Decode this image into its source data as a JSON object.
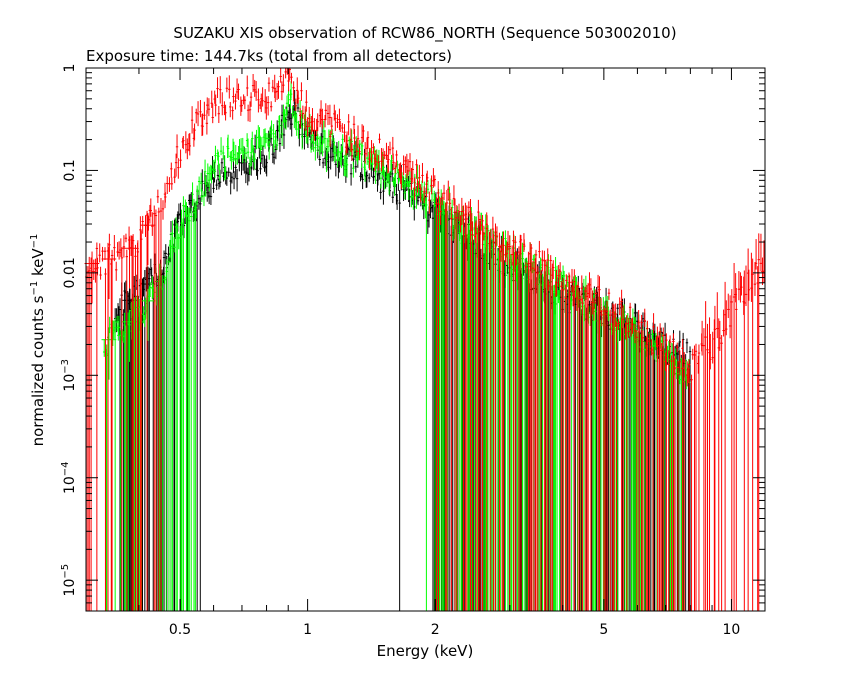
{
  "chart_data": {
    "type": "scatter",
    "title": "SUZAKU XIS observation of RCW86_NORTH (Sequence 503002010)",
    "subtitle": "Exposure time: 144.7ks (total from all detectors)",
    "xlabel": "Energy (keV)",
    "ylabel": {
      "prefix": "normalized counts s",
      "sup1": "−1",
      "mid": " keV",
      "sup2": "−1"
    },
    "x_scale": "log",
    "y_scale": "log",
    "xlim": [
      0.3,
      12
    ],
    "ylim": [
      5e-06,
      1
    ],
    "grid": false,
    "x_ticks": [
      {
        "value": 0.5,
        "label": "0.5"
      },
      {
        "value": 1,
        "label": "1"
      },
      {
        "value": 2,
        "label": "2"
      },
      {
        "value": 5,
        "label": "5"
      },
      {
        "value": 10,
        "label": "10"
      }
    ],
    "y_ticks": [
      {
        "value": 1,
        "label": "1",
        "mant": "1",
        "exp": ""
      },
      {
        "value": 0.1,
        "label": "0.1",
        "mant": "0.1",
        "exp": ""
      },
      {
        "value": 0.01,
        "label": "0.01",
        "mant": "0.01",
        "exp": ""
      },
      {
        "value": 0.001,
        "label": "10−3",
        "mant": "10",
        "exp": "−3"
      },
      {
        "value": 0.0001,
        "label": "10−4",
        "mant": "10",
        "exp": "−4"
      },
      {
        "value": 1e-05,
        "label": "10−5",
        "mant": "10",
        "exp": "−5"
      }
    ],
    "series": [
      {
        "color": "#ff0000",
        "points": [
          [
            0.3,
            0.012
          ],
          [
            0.33,
            0.013
          ],
          [
            0.36,
            0.015
          ],
          [
            0.4,
            0.02
          ],
          [
            0.45,
            0.05
          ],
          [
            0.5,
            0.15
          ],
          [
            0.55,
            0.3
          ],
          [
            0.6,
            0.45
          ],
          [
            0.65,
            0.5
          ],
          [
            0.7,
            0.55
          ],
          [
            0.75,
            0.5
          ],
          [
            0.8,
            0.55
          ],
          [
            0.85,
            0.6
          ],
          [
            0.9,
            0.8
          ],
          [
            0.95,
            0.5
          ],
          [
            1.0,
            0.35
          ],
          [
            1.1,
            0.3
          ],
          [
            1.2,
            0.25
          ],
          [
            1.3,
            0.2
          ],
          [
            1.5,
            0.15
          ],
          [
            1.7,
            0.1
          ],
          [
            2.0,
            0.06
          ],
          [
            2.5,
            0.03
          ],
          [
            3.0,
            0.018
          ],
          [
            3.5,
            0.012
          ],
          [
            4.0,
            0.008
          ],
          [
            5.0,
            0.005
          ],
          [
            6.0,
            0.003
          ],
          [
            7.0,
            0.0018
          ],
          [
            8.0,
            0.0012
          ],
          [
            9.0,
            0.002
          ],
          [
            10.0,
            0.004
          ],
          [
            11.0,
            0.008
          ],
          [
            12.0,
            0.012
          ]
        ]
      },
      {
        "color": "#000000",
        "points": [
          [
            0.35,
            0.004
          ],
          [
            0.45,
            0.01
          ],
          [
            0.5,
            0.03
          ],
          [
            0.55,
            0.05
          ],
          [
            0.6,
            0.08
          ],
          [
            0.65,
            0.1
          ],
          [
            0.7,
            0.12
          ],
          [
            0.75,
            0.13
          ],
          [
            0.8,
            0.15
          ],
          [
            0.85,
            0.2
          ],
          [
            0.9,
            0.4
          ],
          [
            0.95,
            0.3
          ],
          [
            1.0,
            0.2
          ],
          [
            1.1,
            0.15
          ],
          [
            1.2,
            0.13
          ],
          [
            1.3,
            0.12
          ],
          [
            1.5,
            0.08
          ],
          [
            1.7,
            0.06
          ],
          [
            2.0,
            0.04
          ],
          [
            2.5,
            0.02
          ],
          [
            3.0,
            0.012
          ],
          [
            3.5,
            0.008
          ],
          [
            4.0,
            0.006
          ],
          [
            5.0,
            0.004
          ],
          [
            6.0,
            0.003
          ],
          [
            7.0,
            0.002
          ],
          [
            8.0,
            0.0015
          ]
        ]
      },
      {
        "color": "#00ff00",
        "points": [
          [
            0.33,
            0.002
          ],
          [
            0.4,
            0.004
          ],
          [
            0.45,
            0.008
          ],
          [
            0.5,
            0.03
          ],
          [
            0.55,
            0.06
          ],
          [
            0.6,
            0.1
          ],
          [
            0.65,
            0.13
          ],
          [
            0.7,
            0.15
          ],
          [
            0.75,
            0.15
          ],
          [
            0.8,
            0.17
          ],
          [
            0.85,
            0.2
          ],
          [
            0.9,
            0.5
          ],
          [
            0.95,
            0.3
          ],
          [
            1.0,
            0.2
          ],
          [
            1.1,
            0.18
          ],
          [
            1.2,
            0.15
          ],
          [
            1.3,
            0.14
          ],
          [
            1.5,
            0.1
          ],
          [
            1.7,
            0.08
          ],
          [
            2.0,
            0.05
          ],
          [
            2.5,
            0.025
          ],
          [
            3.0,
            0.015
          ],
          [
            3.5,
            0.01
          ],
          [
            4.0,
            0.007
          ],
          [
            5.0,
            0.004
          ],
          [
            6.0,
            0.0025
          ],
          [
            7.0,
            0.0015
          ],
          [
            8.0,
            0.001
          ]
        ]
      }
    ]
  }
}
